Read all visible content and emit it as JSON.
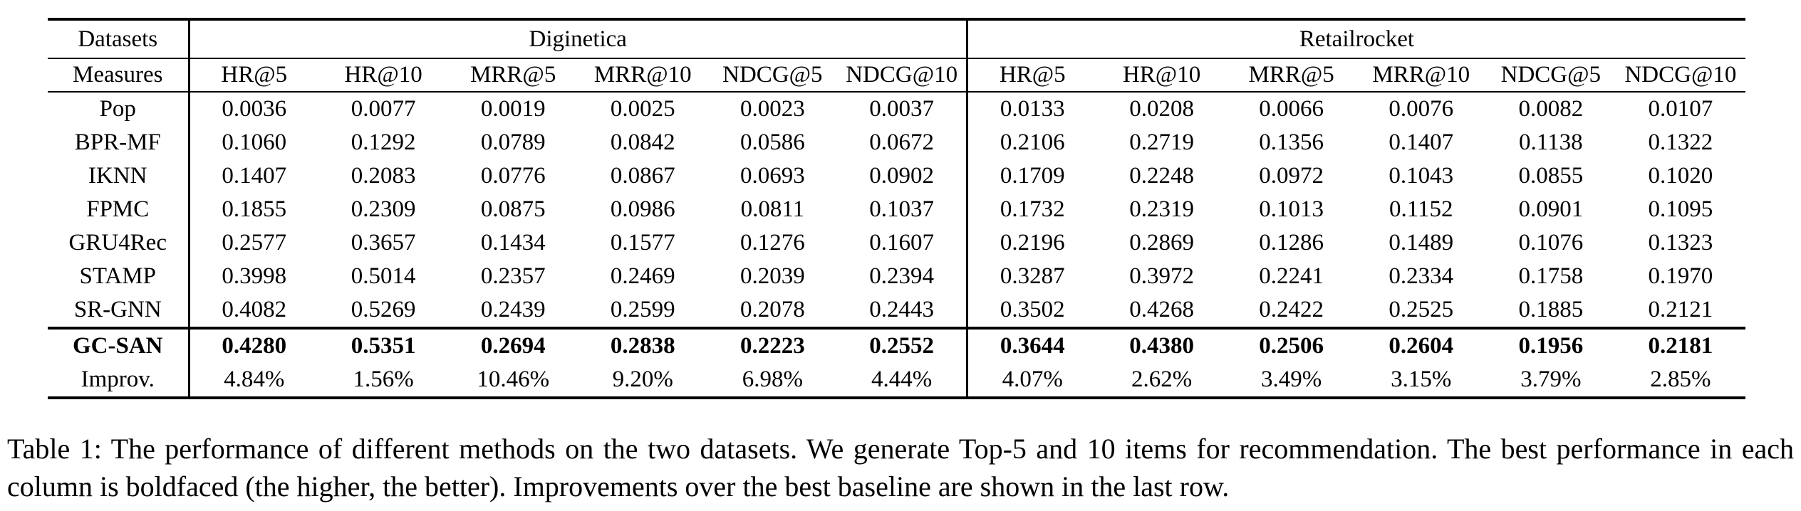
{
  "table": {
    "corner_label": "Datasets",
    "measures_label": "Measures",
    "groups": [
      "Diginetica",
      "Retailrocket"
    ],
    "measures": [
      "HR@5",
      "HR@10",
      "MRR@5",
      "MRR@10",
      "NDCG@5",
      "NDCG@10"
    ],
    "rows": [
      {
        "method": "Pop",
        "bold": false,
        "rule_below": false,
        "diginetica": [
          "0.0036",
          "0.0077",
          "0.0019",
          "0.0025",
          "0.0023",
          "0.0037"
        ],
        "retailrocket": [
          "0.0133",
          "0.0208",
          "0.0066",
          "0.0076",
          "0.0082",
          "0.0107"
        ]
      },
      {
        "method": "BPR-MF",
        "bold": false,
        "rule_below": false,
        "diginetica": [
          "0.1060",
          "0.1292",
          "0.0789",
          "0.0842",
          "0.0586",
          "0.0672"
        ],
        "retailrocket": [
          "0.2106",
          "0.2719",
          "0.1356",
          "0.1407",
          "0.1138",
          "0.1322"
        ]
      },
      {
        "method": "IKNN",
        "bold": false,
        "rule_below": false,
        "diginetica": [
          "0.1407",
          "0.2083",
          "0.0776",
          "0.0867",
          "0.0693",
          "0.0902"
        ],
        "retailrocket": [
          "0.1709",
          "0.2248",
          "0.0972",
          "0.1043",
          "0.0855",
          "0.1020"
        ]
      },
      {
        "method": "FPMC",
        "bold": false,
        "rule_below": false,
        "diginetica": [
          "0.1855",
          "0.2309",
          "0.0875",
          "0.0986",
          "0.0811",
          "0.1037"
        ],
        "retailrocket": [
          "0.1732",
          "0.2319",
          "0.1013",
          "0.1152",
          "0.0901",
          "0.1095"
        ]
      },
      {
        "method": "GRU4Rec",
        "bold": false,
        "rule_below": false,
        "diginetica": [
          "0.2577",
          "0.3657",
          "0.1434",
          "0.1577",
          "0.1276",
          "0.1607"
        ],
        "retailrocket": [
          "0.2196",
          "0.2869",
          "0.1286",
          "0.1489",
          "0.1076",
          "0.1323"
        ]
      },
      {
        "method": "STAMP",
        "bold": false,
        "rule_below": false,
        "diginetica": [
          "0.3998",
          "0.5014",
          "0.2357",
          "0.2469",
          "0.2039",
          "0.2394"
        ],
        "retailrocket": [
          "0.3287",
          "0.3972",
          "0.2241",
          "0.2334",
          "0.1758",
          "0.1970"
        ]
      },
      {
        "method": "SR-GNN",
        "bold": false,
        "rule_below": true,
        "diginetica": [
          "0.4082",
          "0.5269",
          "0.2439",
          "0.2599",
          "0.2078",
          "0.2443"
        ],
        "retailrocket": [
          "0.3502",
          "0.4268",
          "0.2422",
          "0.2525",
          "0.1885",
          "0.2121"
        ]
      },
      {
        "method": "GC-SAN",
        "bold": true,
        "rule_below": false,
        "diginetica": [
          "0.4280",
          "0.5351",
          "0.2694",
          "0.2838",
          "0.2223",
          "0.2552"
        ],
        "retailrocket": [
          "0.3644",
          "0.4380",
          "0.2506",
          "0.2604",
          "0.1956",
          "0.2181"
        ]
      },
      {
        "method": "Improv.",
        "bold": false,
        "rule_below": false,
        "diginetica": [
          "4.84%",
          "1.56%",
          "10.46%",
          "9.20%",
          "6.98%",
          "4.44%"
        ],
        "retailrocket": [
          "4.07%",
          "2.62%",
          "3.49%",
          "3.15%",
          "3.79%",
          "2.85%"
        ]
      }
    ]
  },
  "caption": {
    "text": "Table 1: The performance of different methods on the two datasets. We generate Top-5 and 10 items for recommendation. The best performance in each column is boldfaced (the higher, the better). Improvements over the best baseline are shown in the last row."
  }
}
